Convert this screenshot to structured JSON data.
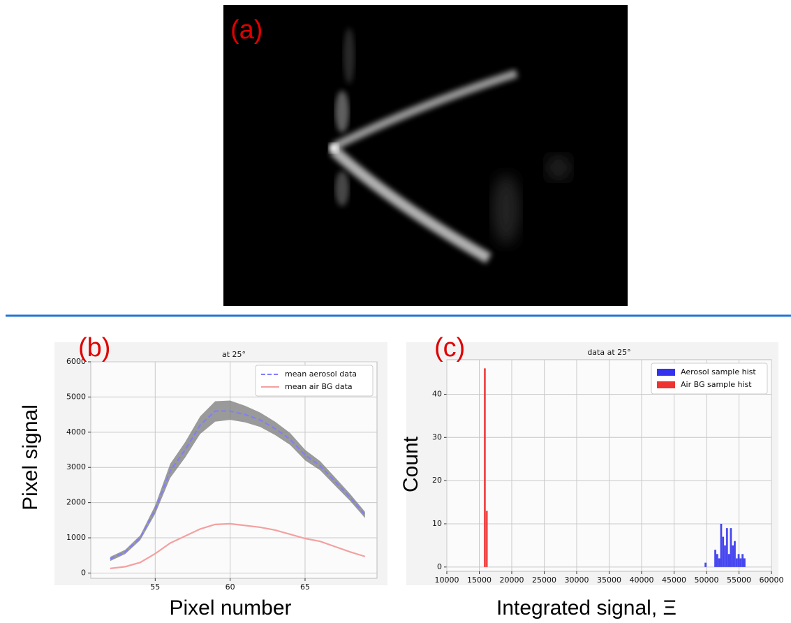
{
  "panels": {
    "a": {
      "label": "(a)"
    }
  },
  "chart_data": [
    {
      "type": "line",
      "panel_label": "(b)",
      "title": "at 25°",
      "x_label": "Pixel number",
      "y_label": "Pixel signal",
      "x": [
        52,
        53,
        54,
        55,
        56,
        57,
        58,
        59,
        60,
        61,
        62,
        63,
        64,
        65,
        66,
        67,
        68,
        69
      ],
      "envelope": {
        "color": "#7a7a7a",
        "lower": [
          340,
          540,
          930,
          1680,
          2700,
          3280,
          3950,
          4300,
          4350,
          4280,
          4150,
          3920,
          3640,
          3200,
          2920,
          2480,
          2050,
          1560
        ],
        "upper": [
          460,
          660,
          1070,
          1920,
          3100,
          3720,
          4450,
          4880,
          4900,
          4750,
          4560,
          4300,
          3980,
          3500,
          3180,
          2720,
          2250,
          1740
        ]
      },
      "series": [
        {
          "name": "mean aerosol data",
          "color": "#7f7fff",
          "dash": true,
          "values": [
            400,
            600,
            1000,
            1800,
            2900,
            3500,
            4200,
            4600,
            4600,
            4500,
            4350,
            4100,
            3800,
            3350,
            3050,
            2600,
            2150,
            1650
          ]
        },
        {
          "name": "mean air BG data",
          "color": "#f4a0a0",
          "dash": false,
          "values": [
            130,
            180,
            300,
            550,
            850,
            1050,
            1250,
            1380,
            1400,
            1350,
            1300,
            1220,
            1100,
            980,
            900,
            750,
            600,
            470
          ]
        }
      ],
      "xlim": [
        50.7,
        69.8
      ],
      "ylim": [
        -150,
        6000
      ],
      "xticks": [
        55,
        60,
        65
      ],
      "yticks": [
        0,
        1000,
        2000,
        3000,
        4000,
        5000,
        6000
      ],
      "grid": true,
      "legend": "upper right"
    },
    {
      "type": "histogram",
      "panel_label": "(c)",
      "title": "data at 25°",
      "x_label": "Integrated signal, Ξ",
      "y_label": "Count",
      "series": [
        {
          "name": "Aerosol sample hist",
          "color": "#3333ee",
          "bins": [
            49700,
            50000,
            50300,
            50600,
            50900,
            51200,
            51500,
            51800,
            52100,
            52400,
            52700,
            53000,
            53300,
            53600,
            53900,
            54200,
            54500,
            54800,
            55100,
            55400,
            55700,
            56000
          ],
          "counts": [
            1,
            0,
            0,
            0,
            0,
            4,
            3,
            2,
            10,
            7,
            5,
            9,
            3,
            9,
            5,
            6,
            2,
            3,
            2,
            3,
            2
          ]
        },
        {
          "name": "Air BG sample hist",
          "color": "#ee3333",
          "bins": [
            15700,
            16000,
            16300
          ],
          "counts": [
            46,
            13
          ]
        }
      ],
      "xlim": [
        10000,
        60000
      ],
      "ylim": [
        -1,
        48
      ],
      "xticks": [
        10000,
        15000,
        20000,
        25000,
        30000,
        35000,
        40000,
        45000,
        50000,
        55000,
        60000
      ],
      "yticks": [
        0,
        10,
        20,
        30,
        40
      ],
      "grid": true,
      "legend": "upper right"
    }
  ]
}
